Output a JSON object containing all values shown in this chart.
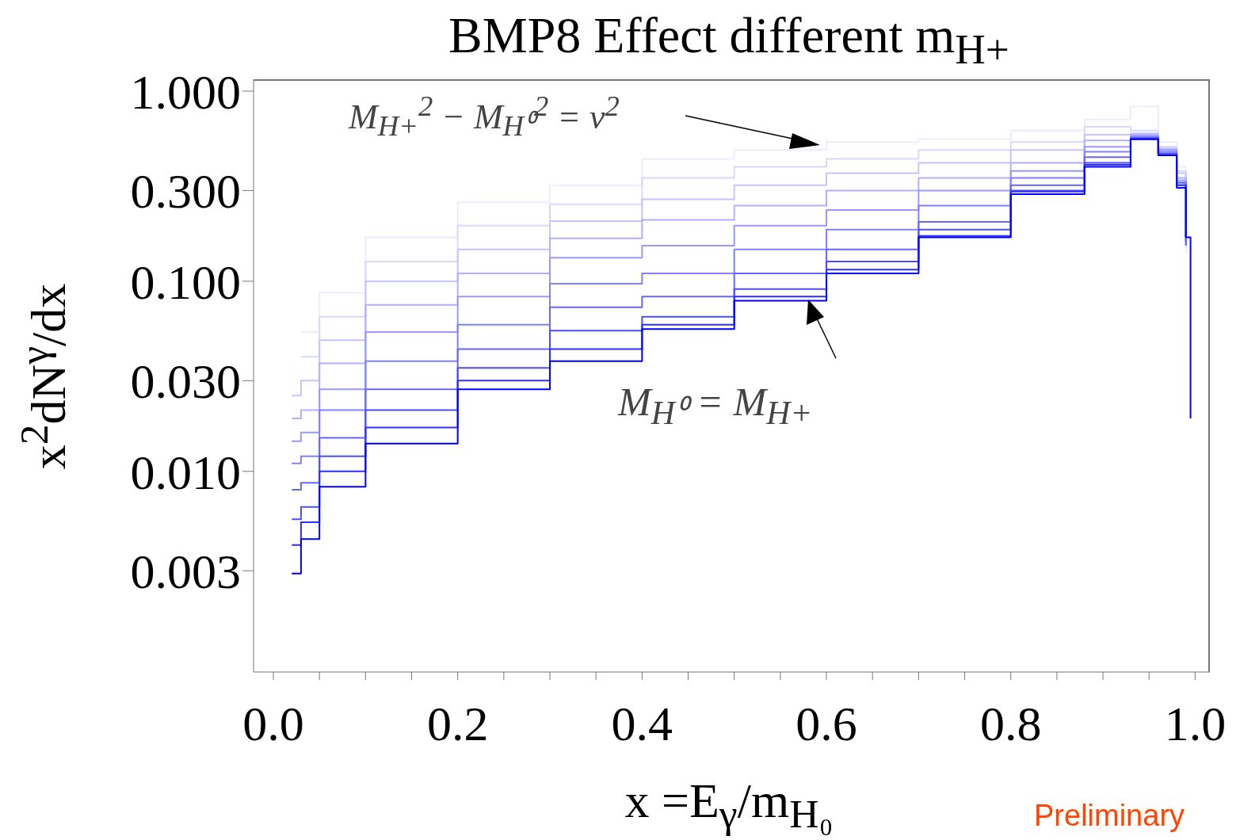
{
  "chart_data": {
    "type": "step",
    "title": "BMP8 Effect different m$_{H+}$",
    "xlabel": "x =E$_{γ}$/m$_{H₀}$",
    "ylabel": "x$^{2}$dN$^{γ}$/dx",
    "annotations": [
      "M$_{H+}$$^{2}$ − M$_{H⁰}$$^{2}$ = v$^{2}$",
      "M$_{H⁰}$ = M$_{H+}$",
      "Preliminary"
    ],
    "log": "y",
    "marker": "none",
    "xlim": [
      -0.0215,
      1.016
    ],
    "ylim": [
      0.00088,
      1.155
    ],
    "xticks": [
      {
        "value": 0,
        "label": "0.0"
      },
      {
        "value": 0.05,
        "label": null
      },
      {
        "value": 0.1,
        "label": null
      },
      {
        "value": 0.15,
        "label": null
      },
      {
        "value": 0.2,
        "label": "0.2"
      },
      {
        "value": 0.25,
        "label": null
      },
      {
        "value": 0.3,
        "label": null
      },
      {
        "value": 0.35,
        "label": null
      },
      {
        "value": 0.4,
        "label": "0.4"
      },
      {
        "value": 0.45,
        "label": null
      },
      {
        "value": 0.5,
        "label": null
      },
      {
        "value": 0.55,
        "label": null
      },
      {
        "value": 0.6,
        "label": "0.6"
      },
      {
        "value": 0.65,
        "label": null
      },
      {
        "value": 0.7,
        "label": null
      },
      {
        "value": 0.75,
        "label": null
      },
      {
        "value": 0.8,
        "label": "0.8"
      },
      {
        "value": 0.85,
        "label": null
      },
      {
        "value": 0.9,
        "label": null
      },
      {
        "value": 0.95,
        "label": null
      },
      {
        "value": 1,
        "label": "1.0"
      }
    ],
    "yticks": [
      {
        "value": 0.003,
        "label": "0.003"
      },
      {
        "value": 0.01,
        "label": "0.010"
      },
      {
        "value": 0.03,
        "label": "0.030"
      },
      {
        "value": 0.1,
        "label": "0.100"
      },
      {
        "value": 0.3,
        "label": "0.300"
      },
      {
        "value": 1,
        "label": "1.000"
      }
    ],
    "x": [
      0.02,
      0.03,
      0.05,
      0.1,
      0.2,
      0.3,
      0.4,
      0.5,
      0.6,
      0.7,
      0.8,
      0.88,
      0.93,
      0.96,
      0.98,
      0.99,
      0.995
    ],
    "series": [
      {
        "color": "#ececff",
        "values": [
          null,
          0.054,
          0.087,
          0.17,
          0.26,
          0.32,
          0.44,
          0.49,
          0.54,
          0.56,
          0.62,
          0.71,
          0.83,
          0.54,
          0.4,
          0.14,
          null
        ]
      },
      {
        "color": "#d8d8ff",
        "values": [
          null,
          0.04,
          0.065,
          0.127,
          0.196,
          0.254,
          0.35,
          0.4,
          0.44,
          0.49,
          0.54,
          0.65,
          0.62,
          0.51,
          0.38,
          0.17,
          null
        ]
      },
      {
        "color": "#c4c4ff",
        "values": [
          0.025,
          0.03,
          0.049,
          0.1,
          0.147,
          0.207,
          0.27,
          0.32,
          0.37,
          0.42,
          0.49,
          0.59,
          0.6,
          0.5,
          0.37,
          0.17,
          null
        ]
      },
      {
        "color": "#b0b0ff",
        "values": [
          0.019,
          0.021,
          0.037,
          0.075,
          0.11,
          0.168,
          0.21,
          0.25,
          0.3,
          0.35,
          0.42,
          0.55,
          0.59,
          0.49,
          0.35,
          0.16,
          null
        ]
      },
      {
        "color": "#9898ff",
        "values": [
          0.0144,
          0.016,
          0.027,
          0.054,
          0.083,
          0.133,
          0.154,
          0.196,
          0.237,
          0.3,
          0.38,
          0.51,
          0.58,
          0.49,
          0.34,
          0.16,
          null
        ]
      },
      {
        "color": "#8080ff",
        "values": [
          0.011,
          0.012,
          0.021,
          0.038,
          0.059,
          0.097,
          0.11,
          0.147,
          0.187,
          0.25,
          0.35,
          0.48,
          0.57,
          0.48,
          0.33,
          0.154,
          null
        ]
      },
      {
        "color": "#6666ff",
        "values": [
          0.008,
          0.0087,
          0.015,
          0.027,
          0.044,
          0.073,
          0.083,
          0.11,
          0.147,
          0.205,
          0.32,
          0.45,
          0.57,
          0.47,
          0.33,
          0.154,
          null
        ]
      },
      {
        "color": "#4c4cff",
        "values": [
          0.0056,
          0.0065,
          0.012,
          0.021,
          0.035,
          0.055,
          0.065,
          0.091,
          0.127,
          0.187,
          0.3,
          0.42,
          0.56,
          0.47,
          0.32,
          0.17,
          null
        ]
      },
      {
        "color": "#2e2eff",
        "values": [
          0.0041,
          0.0054,
          0.01,
          0.017,
          0.03,
          0.044,
          0.059,
          0.083,
          0.115,
          0.173,
          0.296,
          0.41,
          0.56,
          0.46,
          0.32,
          0.17,
          null
        ]
      },
      {
        "color": "#0000ff",
        "values": [
          0.0029,
          0.0044,
          0.0083,
          0.014,
          0.027,
          0.038,
          0.056,
          0.079,
          0.11,
          0.17,
          0.287,
          0.4,
          0.56,
          0.46,
          0.31,
          0.17,
          0.019
        ]
      }
    ]
  }
}
